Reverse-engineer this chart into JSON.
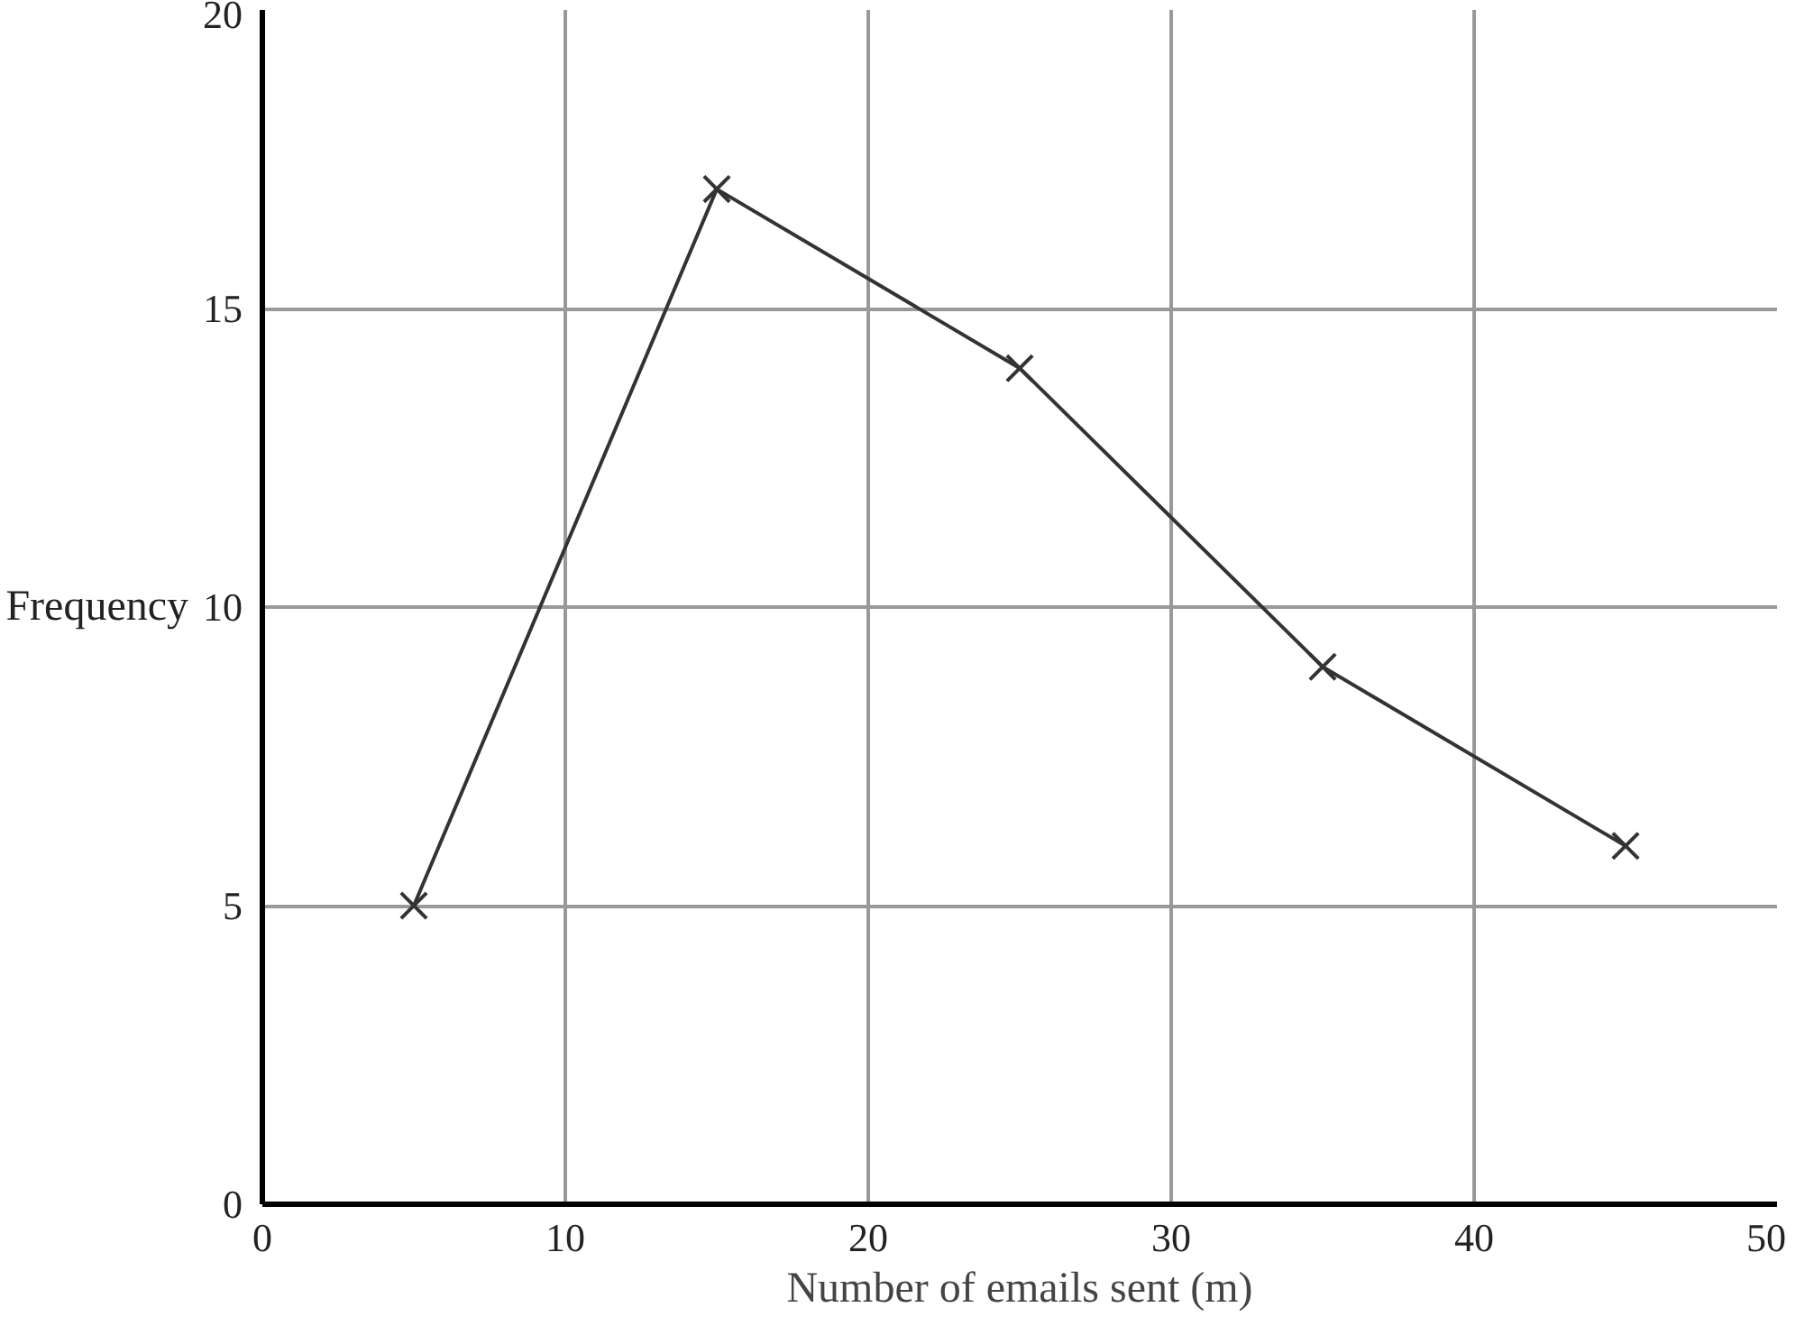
{
  "chart_data": {
    "type": "line",
    "xlabel": "Number of emails sent (m)",
    "ylabel": "Frequency",
    "x": [
      5,
      15,
      25,
      35,
      45
    ],
    "series": [
      {
        "color": "#333333",
        "values": [
          5,
          17,
          14,
          9,
          6
        ]
      }
    ],
    "xlim": [
      0,
      50
    ],
    "ylim": [
      0,
      20
    ],
    "xticks": [
      0,
      10,
      20,
      30,
      40,
      50
    ],
    "yticks": [
      0,
      5,
      10,
      15,
      20
    ],
    "grid": true,
    "marker": "cross",
    "line_style": "solid"
  }
}
